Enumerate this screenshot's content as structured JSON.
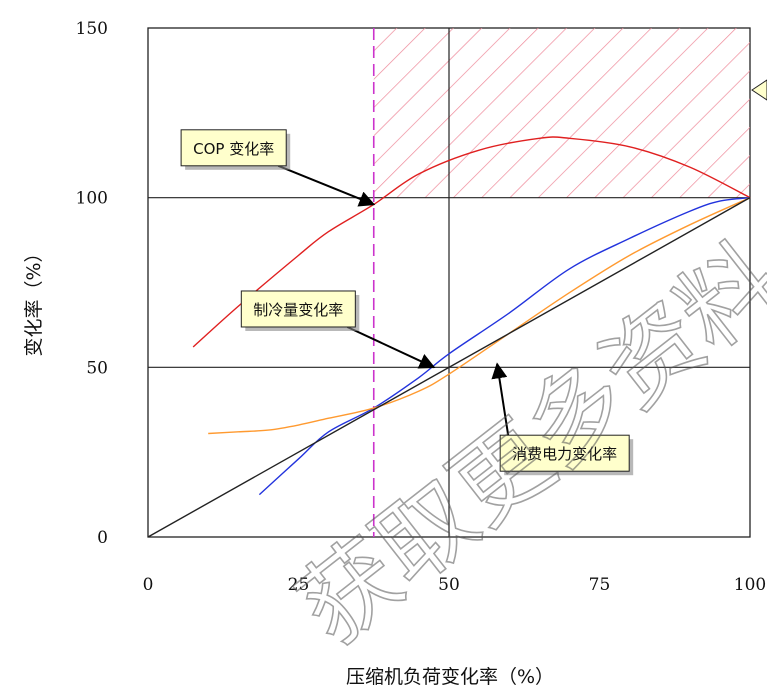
{
  "chart_data": {
    "type": "line",
    "title": "",
    "xlabel": "压缩机负荷变化率（%）",
    "ylabel": "变化率（%）",
    "xlim": [
      0,
      100
    ],
    "ylim": [
      0,
      150
    ],
    "x_ticks": [
      "0",
      "25",
      "50",
      "75",
      "100"
    ],
    "y_ticks": [
      "0",
      "50",
      "100",
      "150"
    ],
    "grid_x": [
      50
    ],
    "grid_y": [
      50,
      100
    ],
    "marker_line_x": 37.5,
    "marker_line_color": "#cc33cc",
    "hatched_region": {
      "x": [
        37.5,
        100
      ],
      "y": [
        100,
        150
      ],
      "color": "#ee8899"
    },
    "series": [
      {
        "name": "COP 变化率",
        "color": "#e02020",
        "x": [
          7.5,
          15,
          25,
          30,
          37.5,
          45,
          55,
          65,
          70,
          80,
          90,
          100
        ],
        "y": [
          56,
          68,
          83,
          90,
          98,
          107,
          114,
          117.5,
          117.5,
          115,
          109,
          100
        ]
      },
      {
        "name": "制冷量变化率",
        "color": "#2233dd",
        "x": [
          18.5,
          25,
          30,
          37.5,
          45,
          50,
          60,
          70,
          80,
          90,
          95,
          100
        ],
        "y": [
          12.5,
          23,
          31,
          38,
          47,
          54,
          66,
          79,
          88,
          96,
          99,
          100
        ]
      },
      {
        "name": "消费电力变化率",
        "color": "#ff9a30",
        "x": [
          10,
          15,
          20,
          25,
          30,
          37.5,
          45,
          50,
          60,
          70,
          80,
          90,
          100
        ],
        "y": [
          30.5,
          31,
          31.5,
          33,
          35,
          38,
          43,
          48,
          60,
          72,
          83,
          92,
          100
        ]
      },
      {
        "name": "",
        "color": "#222222",
        "x": [
          0,
          100
        ],
        "y": [
          0,
          100
        ]
      }
    ],
    "annotations": [
      {
        "text": "COP 变化率",
        "box_x": 5.5,
        "box_y": 120,
        "target_x": 37.5,
        "target_y": 98
      },
      {
        "text": "制冷量变化率",
        "box_x": 15.5,
        "box_y": 72.5,
        "target_x": 47.5,
        "target_y": 50
      },
      {
        "text": "消费电力变化率",
        "box_x": 58.5,
        "box_y": 30,
        "target_x": 58,
        "target_y": 51
      }
    ],
    "callout_fill": "#ffffcc",
    "watermark_text": "获取更多资料"
  }
}
